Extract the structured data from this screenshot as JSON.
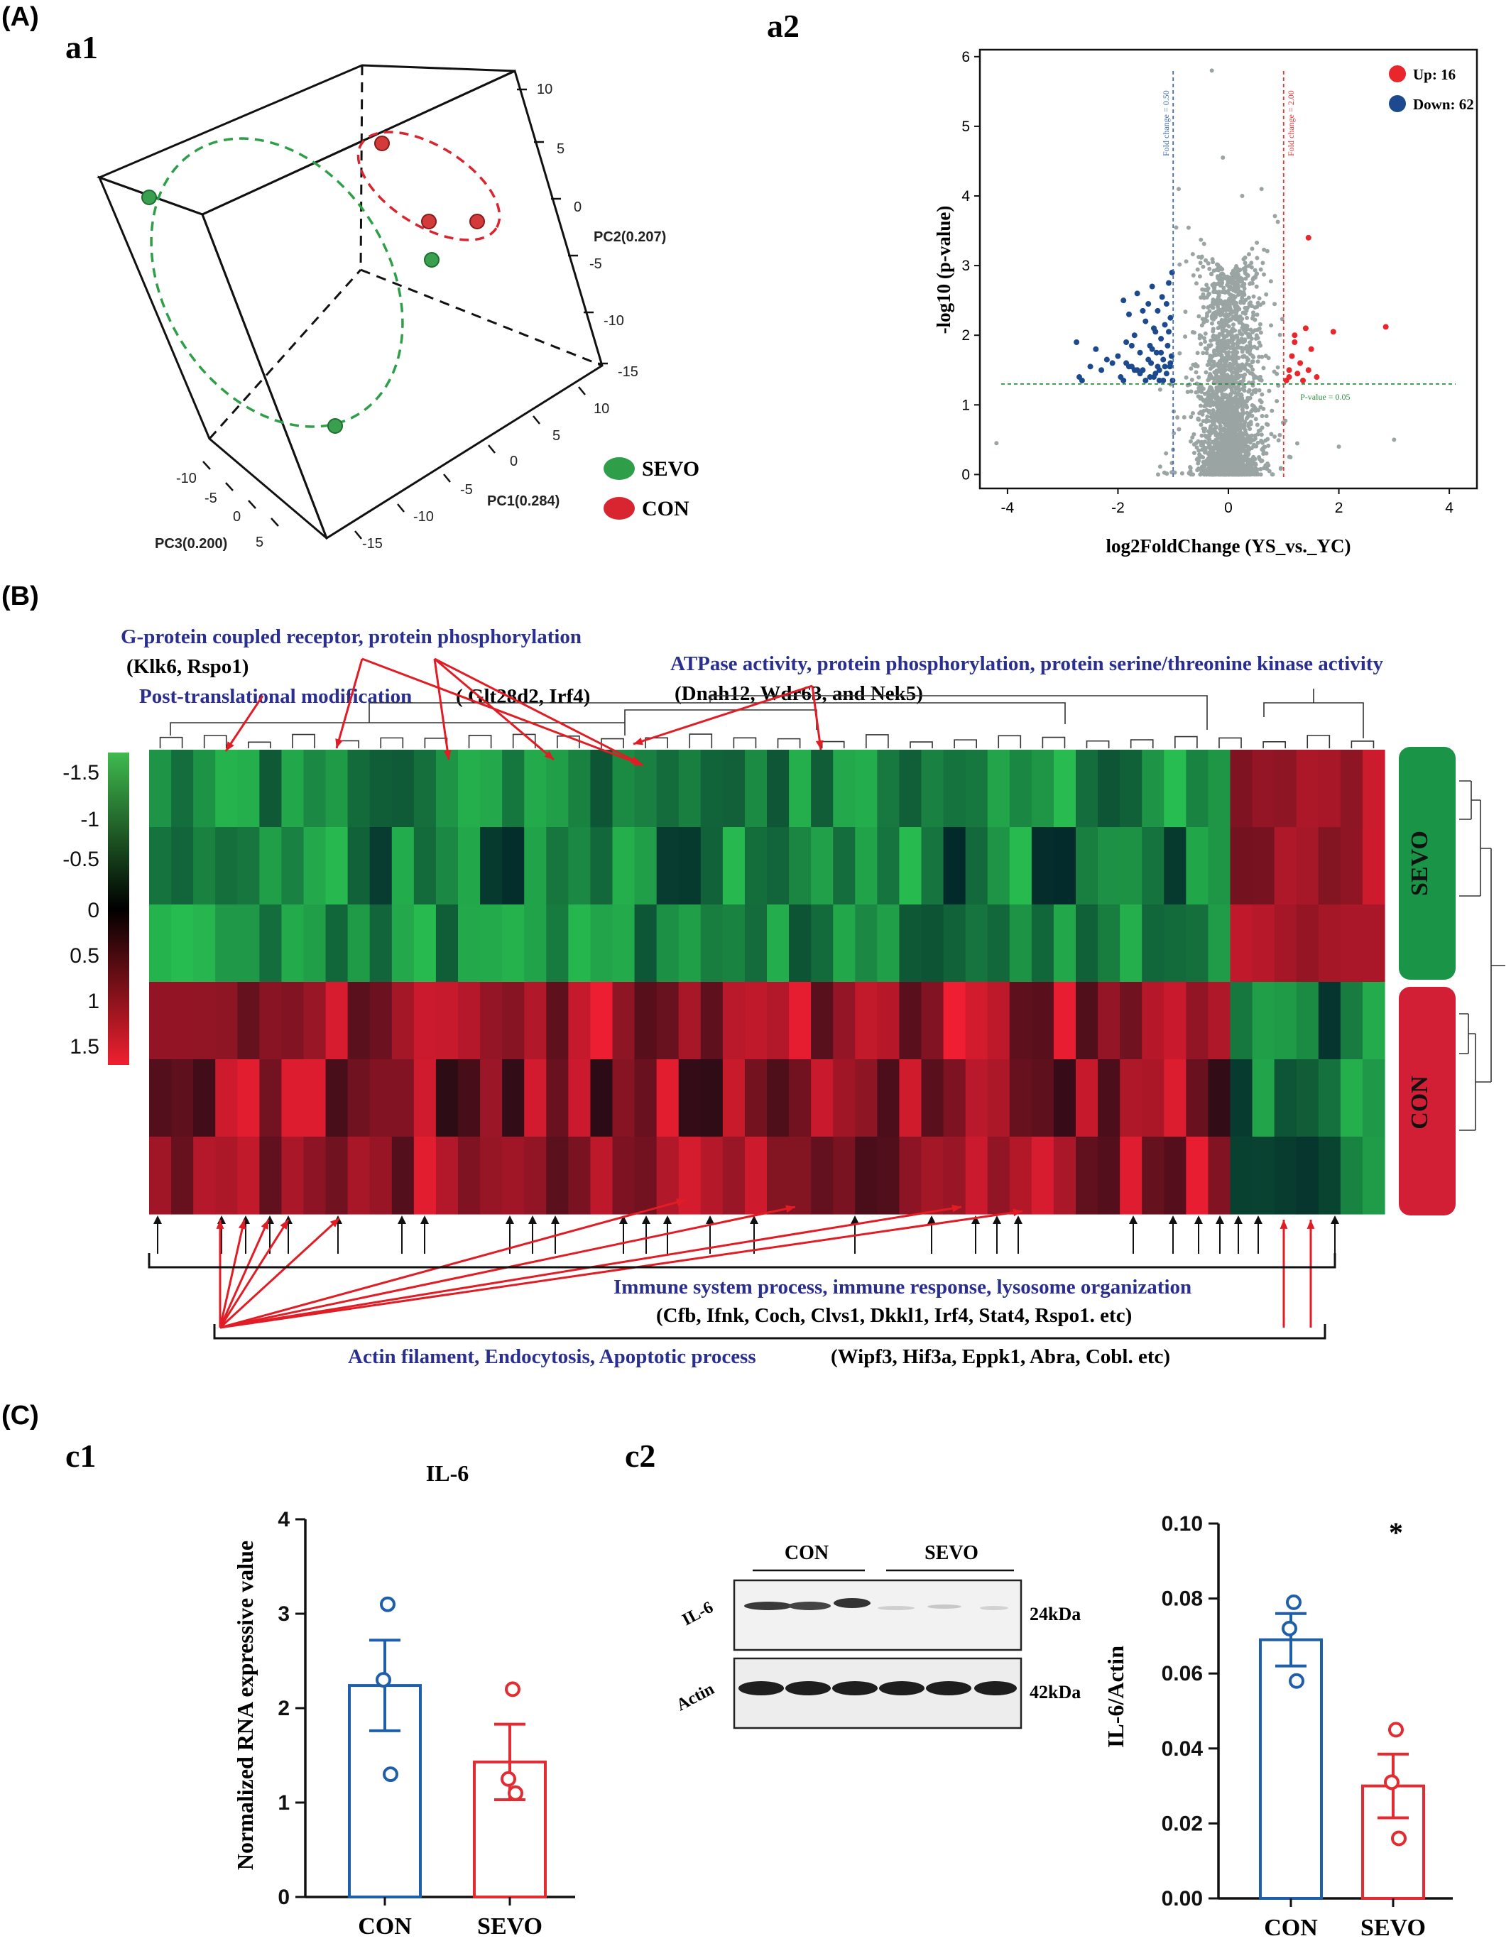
{
  "panels": {
    "A": "(A)",
    "a1": "a1",
    "a2": "a2",
    "B": "(B)",
    "C": "(C)",
    "c1": "c1",
    "c2": "c2"
  },
  "pca": {
    "axes": {
      "pc1": "PC1(0.284)",
      "pc2": "PC2(0.207)",
      "pc3": "PC3(0.200)"
    },
    "pc2_ticks": [
      "10",
      "5",
      "0",
      "-5",
      "-10",
      "-15"
    ],
    "pc1_ticks": [
      "10",
      "5",
      "0",
      "-5",
      "-10",
      "-15"
    ],
    "pc3_ticks": [
      "-10",
      "-5",
      "0",
      "5"
    ],
    "legend": [
      {
        "label": "SEVO",
        "color": "#2e9e48"
      },
      {
        "label": "CON",
        "color": "#d9252f"
      }
    ]
  },
  "heatmap": {
    "scale_labels": [
      "-1.5",
      "-1",
      "-0.5",
      "0",
      "0.5",
      "1",
      "1.5"
    ],
    "groups": [
      "SEVO",
      "CON"
    ],
    "group_colors": {
      "SEVO": "#1a9447",
      "CON": "#d21f35"
    },
    "annotations": {
      "gpcr": "G-protein coupled receptor, protein phosphorylation",
      "gpcr_genes": "(Klk6, Rspo1)",
      "ptm": "Post-translational modification",
      "ptm_genes": "( Glt28d2, Irf4)",
      "atpase": "ATPase activity, protein phosphorylation, protein serine/threonine kinase activity",
      "atpase_genes": "(Dnah12, Wdr63, and Nek5)",
      "immune": "Immune system process, immune response, lysosome organization",
      "immune_genes": "(Cfb, Ifnk, Coch, Clvs1, Dkkl1, Irf4, Stat4, Rspo1. etc)",
      "actin": "Actin filament, Endocytosis, Apoptotic process",
      "actin_genes": "(Wipf3, Hif3a, Eppk1, Abra, Cobl. etc)"
    }
  },
  "western": {
    "labels": {
      "con": "CON",
      "sevo": "SEVO",
      "il6": "IL-6",
      "actin": "Actin",
      "kda_il6": "24kDa",
      "kda_actin": "42kDa"
    }
  },
  "chart_data": [
    {
      "id": "volcano",
      "type": "scatter",
      "xlabel": "log2FoldChange (YS_vs._YC)",
      "ylabel": "-log10 (p-value)",
      "xlim": [
        -4.5,
        4.5
      ],
      "ylim": [
        -0.2,
        6.1
      ],
      "xticks": [
        "-4",
        "-2",
        "0",
        "2",
        "4"
      ],
      "yticks": [
        "0",
        "1",
        "2",
        "3",
        "4",
        "5",
        "6"
      ],
      "legend": [
        {
          "label": "Up: 16",
          "color": "#e8262c"
        },
        {
          "label": "Down: 62",
          "color": "#1d4a8f"
        }
      ],
      "thresholds": {
        "fc_low": -1,
        "fc_high": 1,
        "p": 1.3,
        "fc_low_label": "Fold change = 0.50",
        "fc_high_label": "Fold change = 2.00",
        "p_label": "P-value = 0.05"
      },
      "up_points": [
        [
          1.05,
          1.35
        ],
        [
          1.1,
          1.5
        ],
        [
          1.15,
          1.7
        ],
        [
          1.2,
          1.9
        ],
        [
          1.25,
          1.45
        ],
        [
          1.3,
          1.6
        ],
        [
          1.35,
          1.35
        ],
        [
          1.4,
          2.1
        ],
        [
          1.45,
          1.5
        ],
        [
          1.5,
          1.8
        ],
        [
          1.6,
          1.4
        ],
        [
          1.2,
          2.0
        ],
        [
          1.45,
          3.4
        ],
        [
          1.9,
          2.05
        ],
        [
          2.85,
          2.12
        ],
        [
          1.1,
          1.4
        ]
      ],
      "down_points": [
        [
          -2.75,
          1.9
        ],
        [
          -2.7,
          1.4
        ],
        [
          -2.65,
          1.35
        ],
        [
          -2.2,
          1.65
        ],
        [
          -2.1,
          1.6
        ],
        [
          -1.9,
          2.5
        ],
        [
          -1.85,
          1.9
        ],
        [
          -1.8,
          2.3
        ],
        [
          -1.75,
          1.55
        ],
        [
          -1.7,
          2.0
        ],
        [
          -1.65,
          2.6
        ],
        [
          -1.6,
          1.75
        ],
        [
          -1.55,
          1.5
        ],
        [
          -1.5,
          2.2
        ],
        [
          -1.45,
          2.45
        ],
        [
          -1.42,
          1.85
        ],
        [
          -1.4,
          1.6
        ],
        [
          -1.38,
          2.7
        ],
        [
          -1.35,
          1.4
        ],
        [
          -1.32,
          2.05
        ],
        [
          -1.3,
          1.75
        ],
        [
          -1.28,
          2.35
        ],
        [
          -1.25,
          1.5
        ],
        [
          -1.22,
          1.95
        ],
        [
          -1.2,
          2.55
        ],
        [
          -1.18,
          1.65
        ],
        [
          -1.15,
          2.15
        ],
        [
          -1.12,
          1.45
        ],
        [
          -1.1,
          1.85
        ],
        [
          -1.08,
          2.75
        ],
        [
          -1.06,
          1.55
        ],
        [
          -1.05,
          2.25
        ],
        [
          -1.03,
          1.7
        ],
        [
          -1.02,
          2.9
        ],
        [
          -1.01,
          1.35
        ],
        [
          -1.5,
          1.35
        ],
        [
          -1.6,
          1.45
        ],
        [
          -1.7,
          1.5
        ],
        [
          -1.8,
          1.55
        ],
        [
          -2.0,
          1.7
        ],
        [
          -2.3,
          1.5
        ],
        [
          -2.4,
          1.8
        ],
        [
          -1.95,
          1.4
        ],
        [
          -1.25,
          1.35
        ],
        [
          -1.15,
          1.55
        ],
        [
          -1.35,
          2.1
        ],
        [
          -1.45,
          1.65
        ],
        [
          -1.55,
          2.35
        ],
        [
          -1.65,
          1.5
        ],
        [
          -1.75,
          1.85
        ],
        [
          -1.85,
          1.6
        ],
        [
          -1.05,
          1.6
        ],
        [
          -1.08,
          2.05
        ],
        [
          -1.12,
          2.45
        ],
        [
          -1.18,
          1.35
        ],
        [
          -1.22,
          1.75
        ],
        [
          -1.28,
          1.55
        ],
        [
          -1.32,
          1.45
        ],
        [
          -1.38,
          1.8
        ],
        [
          -1.42,
          1.4
        ],
        [
          -2.5,
          1.55
        ],
        [
          -1.9,
          1.35
        ]
      ]
    },
    {
      "id": "il6_rna",
      "type": "bar",
      "title": "IL-6",
      "ylabel": "Normalized RNA expressive value",
      "categories": [
        "CON",
        "SEVO"
      ],
      "colors": [
        "#1f5faa",
        "#e32b32"
      ],
      "ylim": [
        0,
        4
      ],
      "yticks": [
        "0",
        "1",
        "2",
        "3",
        "4"
      ],
      "series": [
        {
          "values": [
            2.24,
            1.43
          ],
          "sem": [
            0.48,
            0.4
          ],
          "points": [
            [
              3.1,
              2.3,
              1.3
            ],
            [
              2.2,
              1.25,
              1.1
            ]
          ]
        }
      ]
    },
    {
      "id": "il6_wb",
      "type": "bar",
      "ylabel": "IL-6/Actin",
      "categories": [
        "CON",
        "SEVO"
      ],
      "colors": [
        "#1f5faa",
        "#e32b32"
      ],
      "ylim": [
        0,
        0.1
      ],
      "yticks": [
        "0.00",
        "0.02",
        "0.04",
        "0.06",
        "0.08",
        "0.10"
      ],
      "annotation": "*",
      "series": [
        {
          "values": [
            0.069,
            0.03
          ],
          "sem": [
            0.007,
            0.0085
          ],
          "points": [
            [
              0.079,
              0.072,
              0.058
            ],
            [
              0.045,
              0.031,
              0.016
            ]
          ]
        }
      ]
    }
  ]
}
